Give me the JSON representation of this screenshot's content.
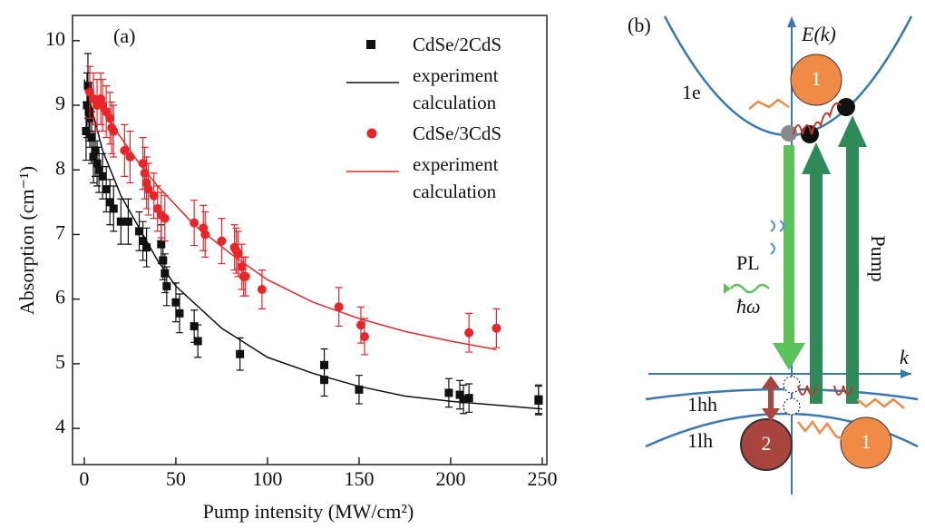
{
  "chart_data": {
    "type": "scatter",
    "title": "(a)",
    "xlabel": "Pump intensity (MW/cm²)",
    "ylabel": "Absorption (cm⁻¹)",
    "xlim": [
      -6.4,
      252.5
    ],
    "ylim": [
      3.44,
      10.39
    ],
    "xticks": [
      0,
      50,
      100,
      150,
      200,
      250
    ],
    "yticks": [
      4,
      5,
      6,
      7,
      8,
      9,
      10
    ],
    "legend": "upper right",
    "series": [
      {
        "name": "CdSe/2CdS",
        "type": "scatter",
        "marker": "square",
        "color": "#111111",
        "x": [
          1,
          1.5,
          2,
          2.5,
          3,
          4,
          5,
          6,
          7,
          8,
          10,
          12,
          14,
          16,
          20,
          24,
          30,
          32,
          34,
          42,
          43,
          44,
          45,
          50,
          52,
          60,
          62,
          85,
          131,
          131,
          150,
          199,
          205,
          207,
          210,
          248,
          248
        ],
        "values": [
          8.6,
          9.0,
          9.3,
          8.9,
          8.8,
          8.5,
          8.2,
          8.3,
          8.1,
          8.0,
          7.9,
          7.7,
          7.5,
          7.4,
          7.2,
          7.2,
          7.05,
          6.9,
          6.8,
          6.85,
          6.6,
          6.4,
          6.2,
          5.95,
          5.78,
          5.58,
          5.35,
          5.15,
          4.98,
          4.75,
          4.6,
          4.55,
          4.52,
          4.45,
          4.47,
          4.45,
          4.43
        ],
        "errors": [
          0.45,
          0.5,
          0.5,
          0.45,
          0.45,
          0.4,
          0.4,
          0.4,
          0.35,
          0.35,
          0.35,
          0.35,
          0.35,
          0.35,
          0.35,
          0.35,
          0.3,
          0.3,
          0.3,
          0.3,
          0.3,
          0.3,
          0.3,
          0.3,
          0.3,
          0.25,
          0.25,
          0.25,
          0.25,
          0.25,
          0.22,
          0.22,
          0.22,
          0.22,
          0.22,
          0.22,
          0.22
        ]
      },
      {
        "name": "experiment calculation",
        "type": "line",
        "color": "#111111",
        "x": [
          0,
          10,
          20,
          30,
          40,
          50,
          75,
          100,
          125,
          150,
          175,
          200,
          250
        ],
        "values": [
          9.4,
          8.3,
          7.6,
          7.1,
          6.6,
          6.2,
          5.55,
          5.1,
          4.85,
          4.65,
          4.5,
          4.42,
          4.3
        ]
      },
      {
        "name": "CdSe/3CdS",
        "type": "scatter",
        "marker": "circle",
        "color": "#e8262a",
        "x": [
          3,
          5,
          7,
          9,
          10,
          12,
          14,
          15,
          16,
          22,
          25,
          32,
          33,
          34,
          35,
          38,
          40,
          42,
          44,
          60,
          65,
          66,
          75,
          82,
          83,
          84,
          86,
          87,
          88,
          97,
          139,
          151,
          153,
          210,
          225
        ],
        "values": [
          9.2,
          9.1,
          9.0,
          9.1,
          9.0,
          8.9,
          8.8,
          8.65,
          8.6,
          8.3,
          8.2,
          8.1,
          7.95,
          7.8,
          7.7,
          7.6,
          7.4,
          7.3,
          7.25,
          7.18,
          7.1,
          7.0,
          6.9,
          6.8,
          6.75,
          6.7,
          6.5,
          6.35,
          6.35,
          6.15,
          5.88,
          5.6,
          5.42,
          5.48,
          5.55
        ],
        "errors": [
          0.4,
          0.4,
          0.4,
          0.4,
          0.4,
          0.4,
          0.4,
          0.4,
          0.4,
          0.4,
          0.4,
          0.4,
          0.4,
          0.4,
          0.4,
          0.35,
          0.35,
          0.35,
          0.35,
          0.35,
          0.35,
          0.35,
          0.35,
          0.35,
          0.35,
          0.35,
          0.35,
          0.3,
          0.3,
          0.3,
          0.3,
          0.28,
          0.28,
          0.3,
          0.3
        ]
      },
      {
        "name": "experiment calculation",
        "type": "line",
        "color": "#e8262a",
        "x": [
          0,
          10,
          20,
          30,
          40,
          60,
          80,
          100,
          125,
          150,
          175,
          200,
          225
        ],
        "values": [
          9.25,
          8.9,
          8.5,
          8.1,
          7.75,
          7.15,
          6.7,
          6.3,
          5.95,
          5.7,
          5.5,
          5.35,
          5.22
        ]
      }
    ]
  },
  "diagram": {
    "label": "(b)",
    "energy_axis": "E(k)",
    "k_axis": "k",
    "band_e": "1e",
    "band_hh": "1hh",
    "band_lh": "1lh",
    "pl": "PL",
    "photon": "ħω",
    "pump": "Pump",
    "particles": [
      "1",
      "1",
      "2"
    ]
  }
}
